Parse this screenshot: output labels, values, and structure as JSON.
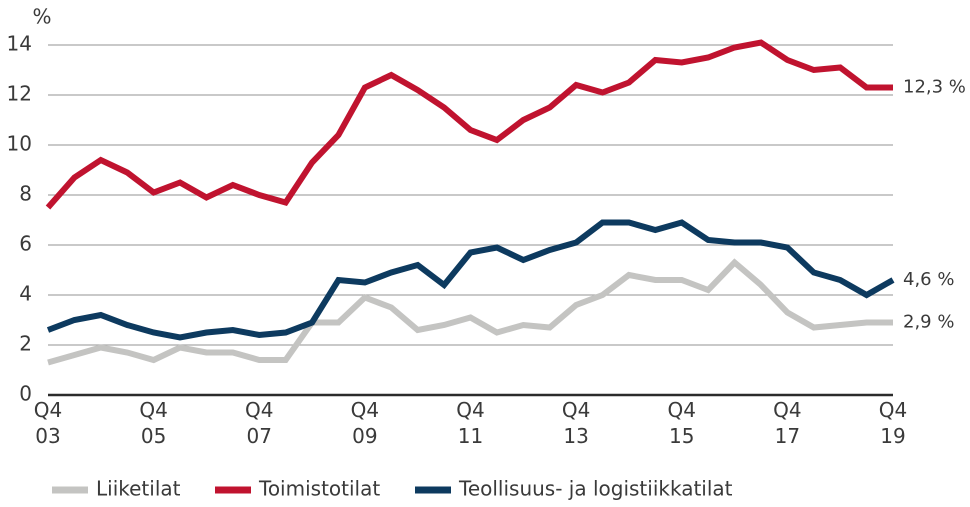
{
  "chart_data": {
    "type": "line",
    "y_axis_label": "%",
    "categories": [
      "Q4\n03",
      null,
      null,
      null,
      "Q4\n05",
      null,
      null,
      null,
      "Q4\n07",
      null,
      null,
      null,
      "Q4\n09",
      null,
      null,
      null,
      "Q4\n11",
      null,
      null,
      null,
      "Q4\n13",
      null,
      null,
      null,
      "Q4\n15",
      null,
      null,
      null,
      "Q4\n17",
      null,
      null,
      null,
      "Q4\n19"
    ],
    "ylim": [
      0,
      14
    ],
    "yticks": [
      0,
      2,
      4,
      6,
      8,
      10,
      12,
      14
    ],
    "grid": true,
    "legend": "bottom",
    "series": [
      {
        "name": "Liiketilat",
        "color": "#c4c4c2",
        "values": [
          1.3,
          1.6,
          1.9,
          1.7,
          1.4,
          1.9,
          1.7,
          1.7,
          1.4,
          1.4,
          2.9,
          2.9,
          3.9,
          3.5,
          2.6,
          2.8,
          3.1,
          2.5,
          2.8,
          2.7,
          3.6,
          4.0,
          4.8,
          4.6,
          4.6,
          4.2,
          5.3,
          4.4,
          3.3,
          2.7,
          2.8,
          2.9,
          2.9
        ],
        "value_labels": [
          null,
          null,
          null,
          null,
          null,
          null,
          null,
          null,
          null,
          null,
          null,
          null,
          null,
          null,
          null,
          null,
          null,
          null,
          null,
          null,
          null,
          null,
          null,
          null,
          null,
          null,
          null,
          null,
          null,
          null,
          null,
          null,
          "2,9 %"
        ]
      },
      {
        "name": "Toimistotilat",
        "color": "#c0132f",
        "values": [
          7.5,
          8.7,
          9.4,
          8.9,
          8.1,
          8.5,
          7.9,
          8.4,
          8.0,
          7.7,
          9.3,
          10.4,
          12.3,
          12.8,
          12.2,
          11.5,
          10.6,
          10.2,
          11.0,
          11.5,
          12.4,
          12.1,
          12.5,
          13.4,
          13.3,
          13.5,
          13.9,
          14.1,
          13.4,
          13.0,
          13.1,
          12.3,
          12.3
        ],
        "value_labels": [
          null,
          null,
          null,
          null,
          null,
          null,
          null,
          null,
          null,
          null,
          null,
          null,
          null,
          null,
          null,
          null,
          null,
          null,
          null,
          null,
          null,
          null,
          null,
          null,
          null,
          null,
          null,
          null,
          null,
          null,
          null,
          null,
          "12,3 %"
        ]
      },
      {
        "name": "Teollisuus- ja logistiikkatilat",
        "color": "#0d3a5f",
        "values": [
          2.6,
          3.0,
          3.2,
          2.8,
          2.5,
          2.3,
          2.5,
          2.6,
          2.4,
          2.5,
          2.9,
          4.6,
          4.5,
          4.9,
          5.2,
          4.4,
          5.7,
          5.9,
          5.4,
          5.8,
          6.1,
          6.9,
          6.9,
          6.6,
          6.9,
          6.2,
          6.1,
          6.1,
          5.9,
          4.9,
          4.6,
          4.0,
          4.6
        ],
        "value_labels": [
          null,
          null,
          null,
          null,
          null,
          null,
          null,
          null,
          null,
          null,
          null,
          null,
          null,
          null,
          null,
          null,
          null,
          null,
          null,
          null,
          null,
          null,
          null,
          null,
          null,
          null,
          null,
          null,
          null,
          null,
          null,
          null,
          "4,6 %"
        ]
      }
    ]
  }
}
